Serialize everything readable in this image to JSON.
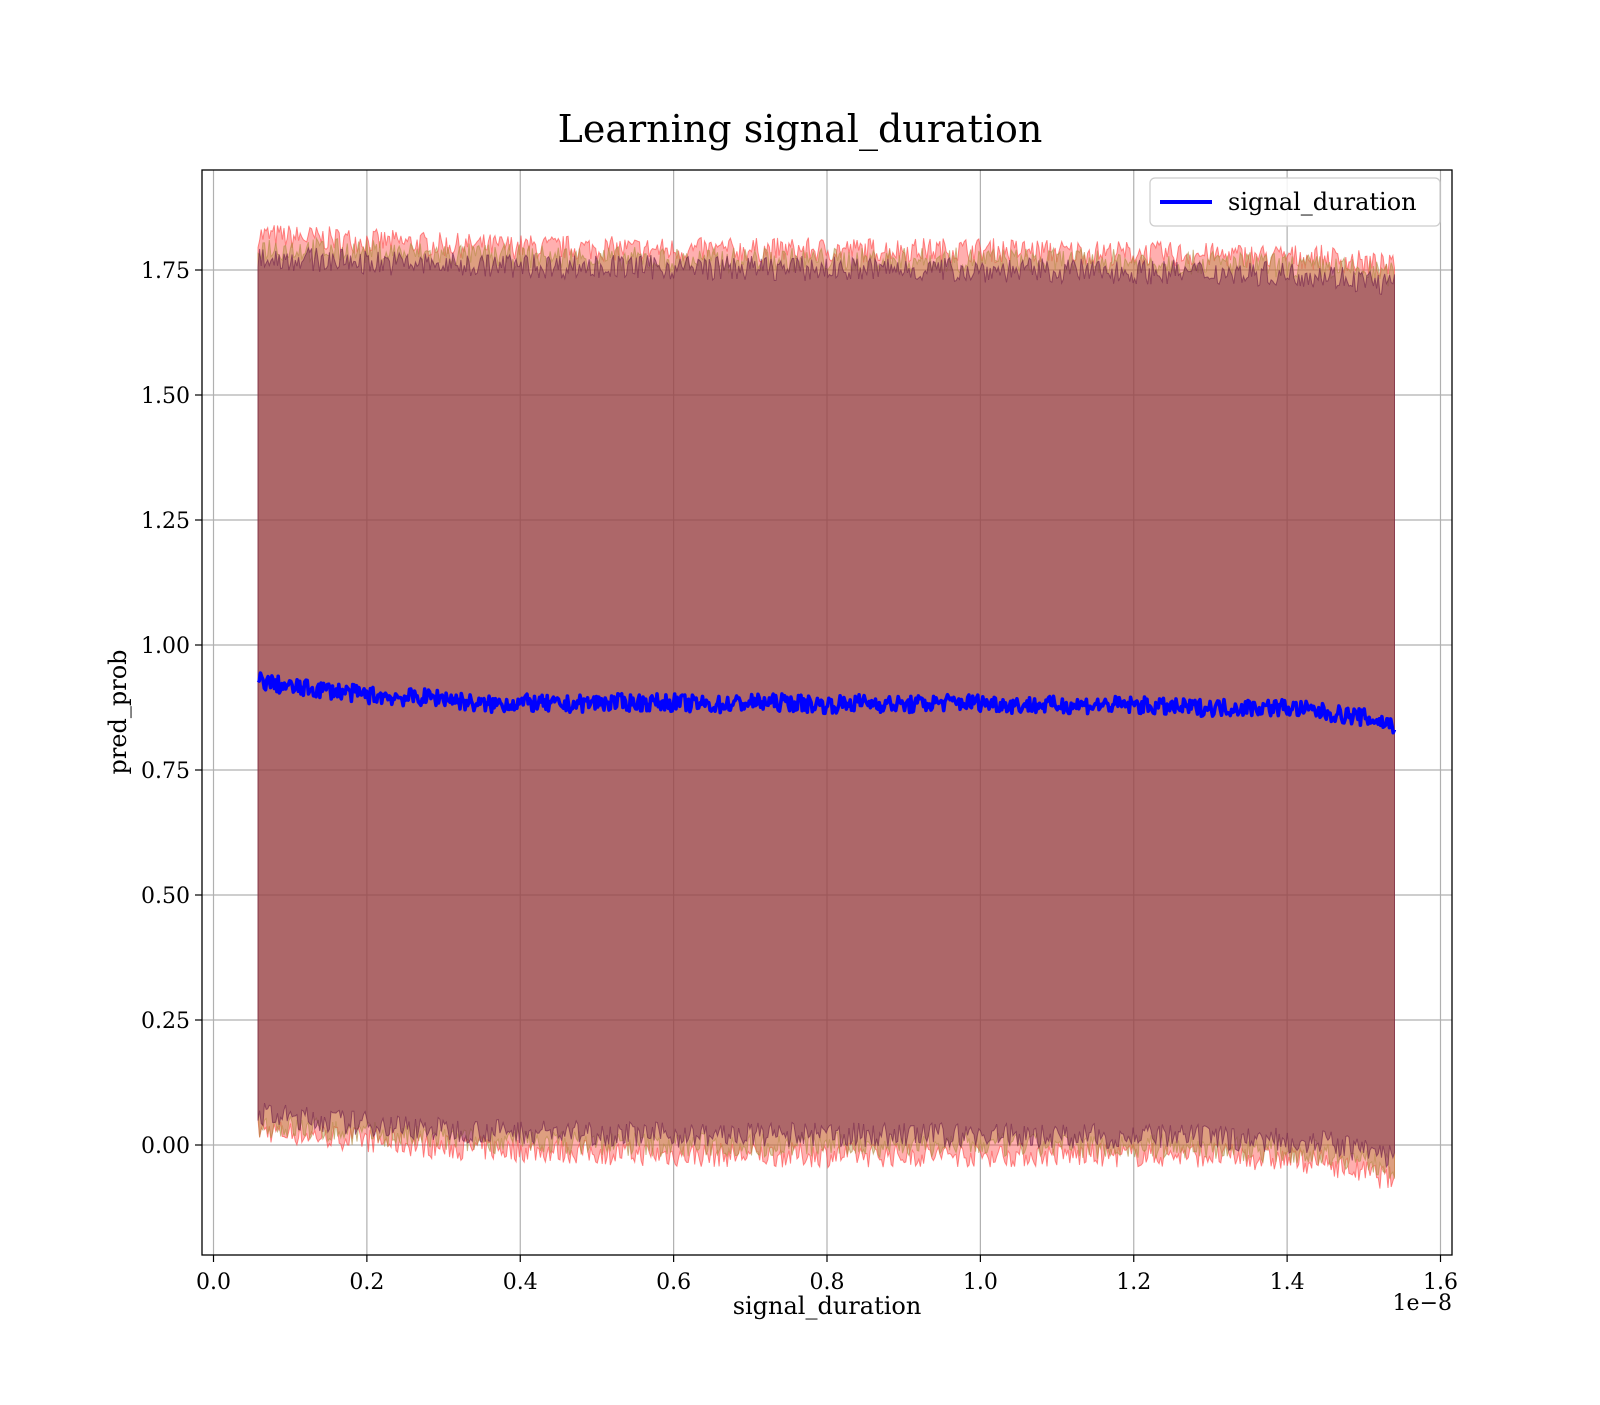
{
  "chart_data": {
    "type": "line",
    "title": "Learning signal_duration",
    "xlabel": "signal_duration",
    "ylabel": "pred_prob",
    "x_offset_label": "1e−8",
    "xlim": [
      -0.015,
      1.615
    ],
    "ylim": [
      -0.22,
      1.95
    ],
    "x_ticks": [
      0.0,
      0.2,
      0.4,
      0.6,
      0.8,
      1.0,
      1.2,
      1.4,
      1.6
    ],
    "x_tick_labels": [
      "0.0",
      "0.2",
      "0.4",
      "0.6",
      "0.8",
      "1.0",
      "1.2",
      "1.4",
      "1.6"
    ],
    "y_ticks": [
      0.0,
      0.25,
      0.5,
      0.75,
      1.0,
      1.25,
      1.5,
      1.75
    ],
    "y_tick_labels": [
      "0.00",
      "0.25",
      "0.50",
      "0.75",
      "1.00",
      "1.25",
      "1.50",
      "1.75"
    ],
    "grid": true,
    "legend": {
      "placement": "top-right",
      "entries": [
        "signal_duration"
      ]
    },
    "x_range": [
      0.058,
      1.54
    ],
    "series": [
      {
        "name": "signal_duration",
        "color": "#0000ff",
        "x": [
          0.058,
          0.1,
          0.15,
          0.2,
          0.25,
          0.3,
          0.35,
          0.4,
          0.45,
          0.5,
          0.55,
          0.6,
          0.65,
          0.7,
          0.75,
          0.8,
          0.85,
          0.9,
          0.95,
          1.0,
          1.05,
          1.1,
          1.15,
          1.2,
          1.25,
          1.3,
          1.35,
          1.4,
          1.45,
          1.5,
          1.54
        ],
        "y": [
          0.93,
          0.915,
          0.91,
          0.9,
          0.895,
          0.895,
          0.88,
          0.885,
          0.88,
          0.885,
          0.885,
          0.885,
          0.88,
          0.885,
          0.885,
          0.88,
          0.885,
          0.88,
          0.885,
          0.885,
          0.88,
          0.88,
          0.88,
          0.88,
          0.875,
          0.875,
          0.875,
          0.875,
          0.865,
          0.855,
          0.84
        ]
      }
    ],
    "bands": [
      {
        "color": "#ff4040",
        "x": [
          0.058,
          0.3,
          0.6,
          1.0,
          1.3,
          1.45,
          1.54
        ],
        "upper": [
          1.82,
          1.8,
          1.79,
          1.79,
          1.78,
          1.775,
          1.755
        ],
        "lower": [
          0.03,
          -0.005,
          -0.02,
          -0.02,
          -0.02,
          -0.035,
          -0.07
        ]
      },
      {
        "color": "#b08a40",
        "x": [
          0.058,
          0.3,
          0.6,
          1.0,
          1.3,
          1.45,
          1.54
        ],
        "upper": [
          1.795,
          1.78,
          1.77,
          1.77,
          1.765,
          1.755,
          1.74
        ],
        "lower": [
          0.04,
          0.01,
          0.0,
          0.0,
          -0.005,
          -0.015,
          -0.045
        ]
      },
      {
        "color": "#6a1a4a",
        "x": [
          0.058,
          0.3,
          0.6,
          1.0,
          1.3,
          1.45,
          1.54
        ],
        "upper": [
          1.775,
          1.76,
          1.755,
          1.75,
          1.745,
          1.74,
          1.72
        ],
        "lower": [
          0.06,
          0.03,
          0.02,
          0.02,
          0.015,
          0.005,
          -0.025
        ]
      }
    ]
  }
}
